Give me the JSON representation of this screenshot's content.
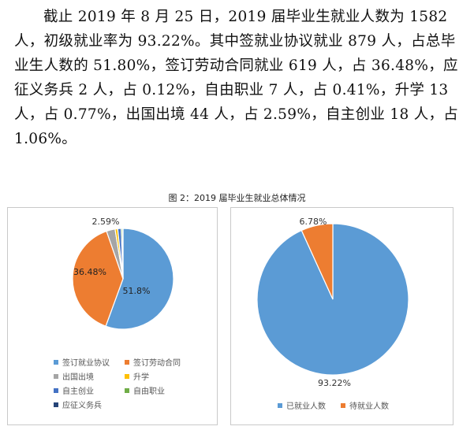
{
  "paragraph": "截止 2019 年 8 月 25 日，2019 届毕业生就业人数为 1582 人，初级就业率为 93.22%。其中签就业协议就业 879 人，占总毕业生人数的 51.80%，签订劳动合同就业 619 人，占 36.48%，应征义务兵 2 人，占 0.12%，自由职业 7 人，占 0.41%，升学 13 人，占 0.77%，出国出境 44 人，占 2.59%，自主创业 18 人，占 1.06%。",
  "figure_caption": "图 2：2019 届毕业生就业总体情况",
  "chart_data": [
    {
      "type": "pie",
      "categories": [
        "签订就业协议",
        "签订劳动合同",
        "出国出境",
        "升学",
        "自主创业",
        "自由职业",
        "应征义务兵"
      ],
      "values": [
        51.8,
        36.48,
        2.59,
        0.77,
        1.06,
        0.41,
        0.12
      ],
      "colors": [
        "#5B9BD5",
        "#ED7D31",
        "#A5A5A5",
        "#FFC000",
        "#4472C4",
        "#70AD47",
        "#264478"
      ],
      "data_labels": [
        "51.8%",
        "36.48%",
        "2.59%",
        "",
        "",
        "",
        ""
      ],
      "legend_position": "bottom"
    },
    {
      "type": "pie",
      "categories": [
        "已就业人数",
        "待就业人数"
      ],
      "values": [
        93.22,
        6.78
      ],
      "colors": [
        "#5B9BD5",
        "#ED7D31"
      ],
      "data_labels": [
        "93.22%",
        "6.78%"
      ],
      "legend_position": "bottom"
    }
  ]
}
